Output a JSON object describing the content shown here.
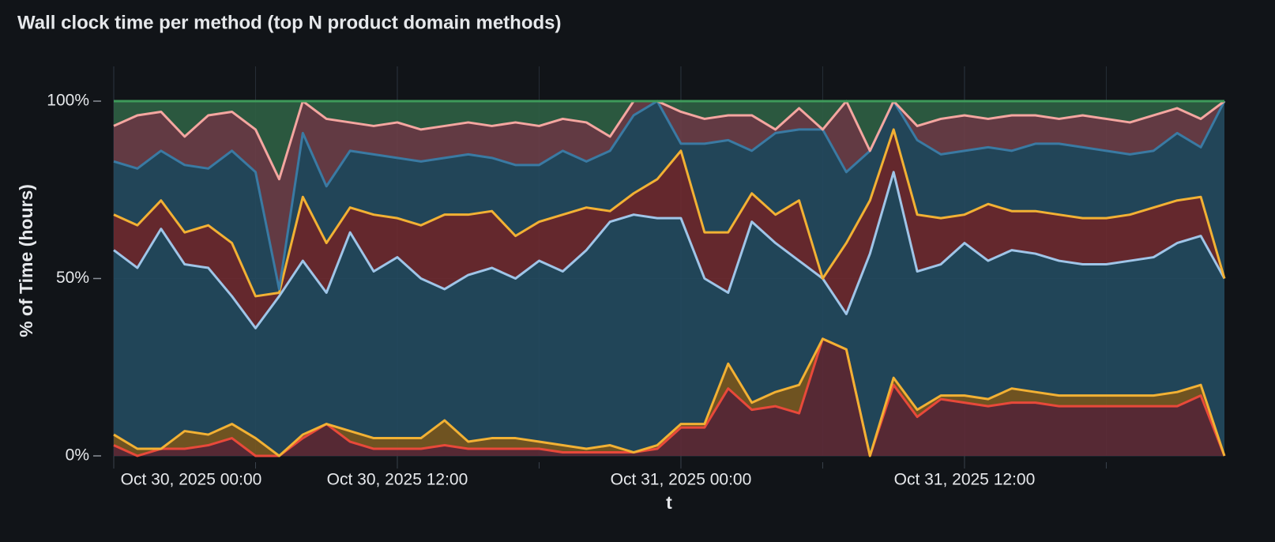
{
  "chart_data": {
    "type": "stacked_area",
    "title": "Wall clock time per method (top N product domain methods)",
    "xlabel": "t",
    "ylabel": "% of Time (hours)",
    "x": [
      "2025-10-30 00:00",
      "2025-10-30 01:00",
      "2025-10-30 02:00",
      "2025-10-30 03:00",
      "2025-10-30 04:00",
      "2025-10-30 05:00",
      "2025-10-30 06:00",
      "2025-10-30 07:00",
      "2025-10-30 08:00",
      "2025-10-30 09:00",
      "2025-10-30 10:00",
      "2025-10-30 11:00",
      "2025-10-30 12:00",
      "2025-10-30 13:00",
      "2025-10-30 14:00",
      "2025-10-30 15:00",
      "2025-10-30 16:00",
      "2025-10-30 17:00",
      "2025-10-30 18:00",
      "2025-10-30 19:00",
      "2025-10-30 20:00",
      "2025-10-30 21:00",
      "2025-10-30 22:00",
      "2025-10-30 23:00",
      "2025-10-31 00:00",
      "2025-10-31 01:00",
      "2025-10-31 02:00",
      "2025-10-31 03:00",
      "2025-10-31 04:00",
      "2025-10-31 05:00",
      "2025-10-31 06:00",
      "2025-10-31 07:00",
      "2025-10-31 08:00",
      "2025-10-31 09:00",
      "2025-10-31 10:00",
      "2025-10-31 11:00",
      "2025-10-31 12:00",
      "2025-10-31 13:00",
      "2025-10-31 14:00",
      "2025-10-31 15:00",
      "2025-10-31 16:00",
      "2025-10-31 17:00",
      "2025-10-31 18:00",
      "2025-10-31 19:00",
      "2025-10-31 20:00",
      "2025-10-31 21:00",
      "2025-10-31 22:00",
      "2025-10-31 23:00"
    ],
    "series": [
      {
        "color": "#e8493a",
        "fill": "#5e2b37",
        "values": [
          3,
          0,
          2,
          2,
          3,
          5,
          0,
          0,
          5,
          9,
          4,
          2,
          2,
          2,
          3,
          2,
          2,
          2,
          2,
          1,
          1,
          1,
          1,
          2,
          8,
          8,
          19,
          13,
          14,
          12,
          33,
          30,
          0,
          20,
          11,
          16,
          15,
          14,
          15,
          15,
          14,
          14,
          14,
          14,
          14,
          14,
          17,
          0
        ]
      },
      {
        "color": "#f2b134",
        "fill": "#7a5a22",
        "values": [
          3,
          2,
          0,
          5,
          3,
          4,
          5,
          0,
          1,
          0,
          3,
          3,
          3,
          3,
          7,
          2,
          3,
          3,
          2,
          2,
          1,
          2,
          0,
          1,
          1,
          1,
          7,
          2,
          4,
          8,
          0,
          0,
          0,
          2,
          2,
          1,
          2,
          2,
          4,
          3,
          3,
          3,
          3,
          3,
          3,
          4,
          3,
          0
        ]
      },
      {
        "color": "#9fc5e8",
        "fill": "#244a5f",
        "values": [
          52,
          51,
          62,
          47,
          47,
          36,
          31,
          45,
          49,
          37,
          56,
          47,
          51,
          45,
          37,
          47,
          48,
          45,
          51,
          49,
          56,
          63,
          67,
          64,
          58,
          41,
          20,
          51,
          42,
          35,
          17,
          10,
          57,
          58,
          39,
          37,
          43,
          39,
          39,
          39,
          38,
          37,
          37,
          38,
          39,
          42,
          42,
          50
        ]
      },
      {
        "color": "#f2b134",
        "fill": "#6e2a30",
        "values": [
          10,
          12,
          8,
          9,
          12,
          15,
          9,
          1,
          18,
          14,
          7,
          16,
          11,
          15,
          21,
          17,
          16,
          12,
          11,
          16,
          12,
          3,
          6,
          11,
          19,
          13,
          17,
          8,
          8,
          17,
          0,
          20,
          15,
          12,
          16,
          13,
          8,
          16,
          11,
          12,
          13,
          13,
          13,
          13,
          14,
          12,
          11,
          0
        ]
      },
      {
        "color": "#3a7aa3",
        "fill": "#254a5f",
        "values": [
          15,
          16,
          14,
          19,
          16,
          26,
          35,
          1,
          18,
          16,
          16,
          17,
          17,
          18,
          16,
          17,
          15,
          20,
          16,
          18,
          13,
          17,
          22,
          22,
          2,
          25,
          26,
          12,
          23,
          20,
          42,
          20,
          14,
          8,
          21,
          18,
          18,
          16,
          17,
          19,
          20,
          20,
          19,
          17,
          16,
          19,
          14,
          50
        ]
      },
      {
        "color": "#f4a6a0",
        "fill": "#6b3e48",
        "values": [
          10,
          15,
          11,
          8,
          15,
          11,
          12,
          31,
          9,
          19,
          8,
          8,
          10,
          9,
          9,
          9,
          9,
          12,
          11,
          9,
          11,
          4,
          4,
          0,
          9,
          7,
          7,
          10,
          1,
          6,
          0,
          20,
          0,
          0,
          4,
          10,
          10,
          8,
          10,
          8,
          7,
          9,
          9,
          9,
          10,
          7,
          8,
          0
        ]
      },
      {
        "color": "#3e9a5a",
        "fill": "#2f5f44",
        "values": [
          7,
          4,
          3,
          10,
          4,
          3,
          8,
          22,
          0,
          5,
          6,
          7,
          6,
          8,
          7,
          6,
          7,
          6,
          7,
          5,
          6,
          10,
          0,
          0,
          3,
          5,
          4,
          4,
          8,
          2,
          8,
          0,
          14,
          0,
          7,
          5,
          4,
          5,
          4,
          4,
          5,
          4,
          5,
          6,
          4,
          2,
          5,
          0
        ]
      }
    ],
    "xlim": [
      "2025-10-30 00:00",
      "2025-10-31 23:00"
    ],
    "xticks": [
      {
        "value": "2025-10-30 00:00",
        "label": "Oct 30, 2025 00:00"
      },
      {
        "value": "2025-10-30 12:00",
        "label": "Oct 30, 2025 12:00"
      },
      {
        "value": "2025-10-31 00:00",
        "label": "Oct 31, 2025 00:00"
      },
      {
        "value": "2025-10-31 12:00",
        "label": "Oct 31, 2025 12:00"
      }
    ],
    "ylim": [
      0,
      100
    ],
    "yticks": [
      {
        "value": 0,
        "label": "0%"
      },
      {
        "value": 50,
        "label": "50%"
      },
      {
        "value": 100,
        "label": "100%"
      }
    ],
    "grid": true
  }
}
